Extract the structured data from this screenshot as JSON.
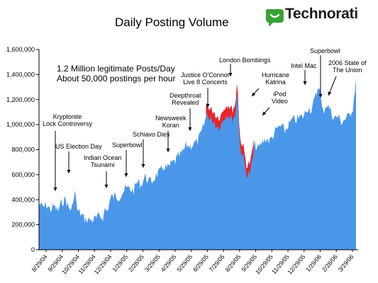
{
  "header": {
    "title": "Daily Posting Volume",
    "brand": "Technorati",
    "brand_color": "#3aa335"
  },
  "chart_data": {
    "type": "area",
    "title": "Daily Posting Volume",
    "xlabel": "",
    "ylabel": "",
    "ylim": [
      0,
      1600000
    ],
    "yticks": [
      "0",
      "200,000",
      "400,000",
      "600,000",
      "800,000",
      "1,000,000",
      "1,200,000",
      "1,400,000",
      "1,600,000"
    ],
    "xticks": [
      "8/29/04",
      "9/29/04",
      "10/29/04",
      "11/29/04",
      "12/29/04",
      "1/29/05",
      "2/28/05",
      "3/29/05",
      "4/29/05",
      "5/29/05",
      "6/29/05",
      "7/29/05",
      "8/29/05",
      "9/29/05",
      "10/29/05",
      "11/29/05",
      "12/29/05",
      "1/29/06",
      "2/28/06",
      "3/29/06"
    ],
    "grid": false,
    "colors": {
      "fill": "#4a97ea",
      "spam": "#e8242a",
      "axis": "#000000"
    },
    "series": [
      {
        "x": [
          "8/29/04",
          "9/5/04",
          "9/12/04",
          "9/19/04",
          "9/26/04",
          "10/3/04",
          "10/10/04",
          "10/17/04",
          "10/24/04",
          "10/31/04",
          "11/3/04",
          "11/7/04",
          "11/14/04",
          "11/21/04",
          "11/28/04",
          "12/5/04",
          "12/12/04",
          "12/19/04",
          "12/26/04",
          "12/29/04",
          "1/2/05",
          "1/9/05",
          "1/16/05",
          "1/23/05",
          "1/30/05",
          "2/6/05",
          "2/13/05",
          "2/20/05",
          "2/27/05",
          "3/6/05",
          "3/13/05",
          "3/20/05",
          "3/27/05",
          "4/3/05",
          "4/10/05",
          "4/17/05",
          "4/24/05",
          "5/1/05",
          "5/8/05",
          "5/15/05",
          "5/22/05",
          "5/29/05",
          "6/5/05",
          "6/12/05",
          "6/19/05",
          "6/26/05",
          "7/3/05",
          "7/7/05",
          "7/10/05",
          "7/17/05",
          "7/24/05",
          "7/31/05",
          "8/7/05",
          "8/14/05",
          "8/21/05",
          "8/28/05",
          "8/31/05",
          "9/4/05",
          "9/11/05",
          "9/18/05",
          "9/25/05",
          "10/2/05",
          "10/9/05",
          "10/16/05",
          "10/23/05",
          "10/30/05",
          "11/6/05",
          "11/13/05",
          "11/20/05",
          "11/27/05",
          "12/4/05",
          "12/11/05",
          "12/18/05",
          "12/25/05",
          "1/1/06",
          "1/8/06",
          "1/15/06",
          "1/22/06",
          "1/29/06",
          "2/5/06",
          "2/12/06",
          "2/19/06",
          "2/26/06",
          "3/5/06",
          "3/12/06",
          "3/19/06",
          "3/26/06",
          "4/2/06",
          "4/9/06"
        ],
        "y": [
          380000,
          350000,
          370000,
          330000,
          360000,
          320000,
          390000,
          420000,
          330000,
          360000,
          530000,
          330000,
          300000,
          260000,
          250000,
          250000,
          260000,
          280000,
          270000,
          340000,
          320000,
          430000,
          440000,
          430000,
          470000,
          500000,
          500000,
          480000,
          560000,
          530000,
          600000,
          560000,
          560000,
          610000,
          630000,
          680000,
          660000,
          700000,
          720000,
          760000,
          790000,
          850000,
          840000,
          860000,
          880000,
          950000,
          1050000,
          1130000,
          1050000,
          1050000,
          1000000,
          1000000,
          1080000,
          1100000,
          1050000,
          1100000,
          1350000,
          850000,
          750000,
          600000,
          640000,
          850000,
          820000,
          870000,
          900000,
          880000,
          930000,
          980000,
          1000000,
          960000,
          1010000,
          1050000,
          1050000,
          1070000,
          1080000,
          1150000,
          1130000,
          1220000,
          1340000,
          1100000,
          1180000,
          1130000,
          1060000,
          1080000,
          1030000,
          1060000,
          1080000,
          1150000,
          1430000
        ]
      }
    ]
  },
  "annotations": {
    "headline_1": "1.2 Million legitimate Posts/Day",
    "headline_2": "About 50,000 postings per hour",
    "kryptonite": "Kryptonite\nLock Controversy",
    "election": "US Election Day",
    "tsunami": "Indian Ocean\nTsunami",
    "superbowl_05": "Superbowl",
    "schiavo": "Schiavo Dies",
    "newsweek": "Newsweek\nKoran",
    "deepthroat": "Deepthroat\nRevealed",
    "oconnor": "Justice O'Connor\nLive 8 Concerts",
    "london": "London Bombings",
    "katrina": "Hurricane\nKatrina",
    "ipod": "iPod\nVideo",
    "intelmac": "Intel Mac",
    "superbowl_06": "Superbowl",
    "sotu": "2006 State of\nThe Union"
  }
}
